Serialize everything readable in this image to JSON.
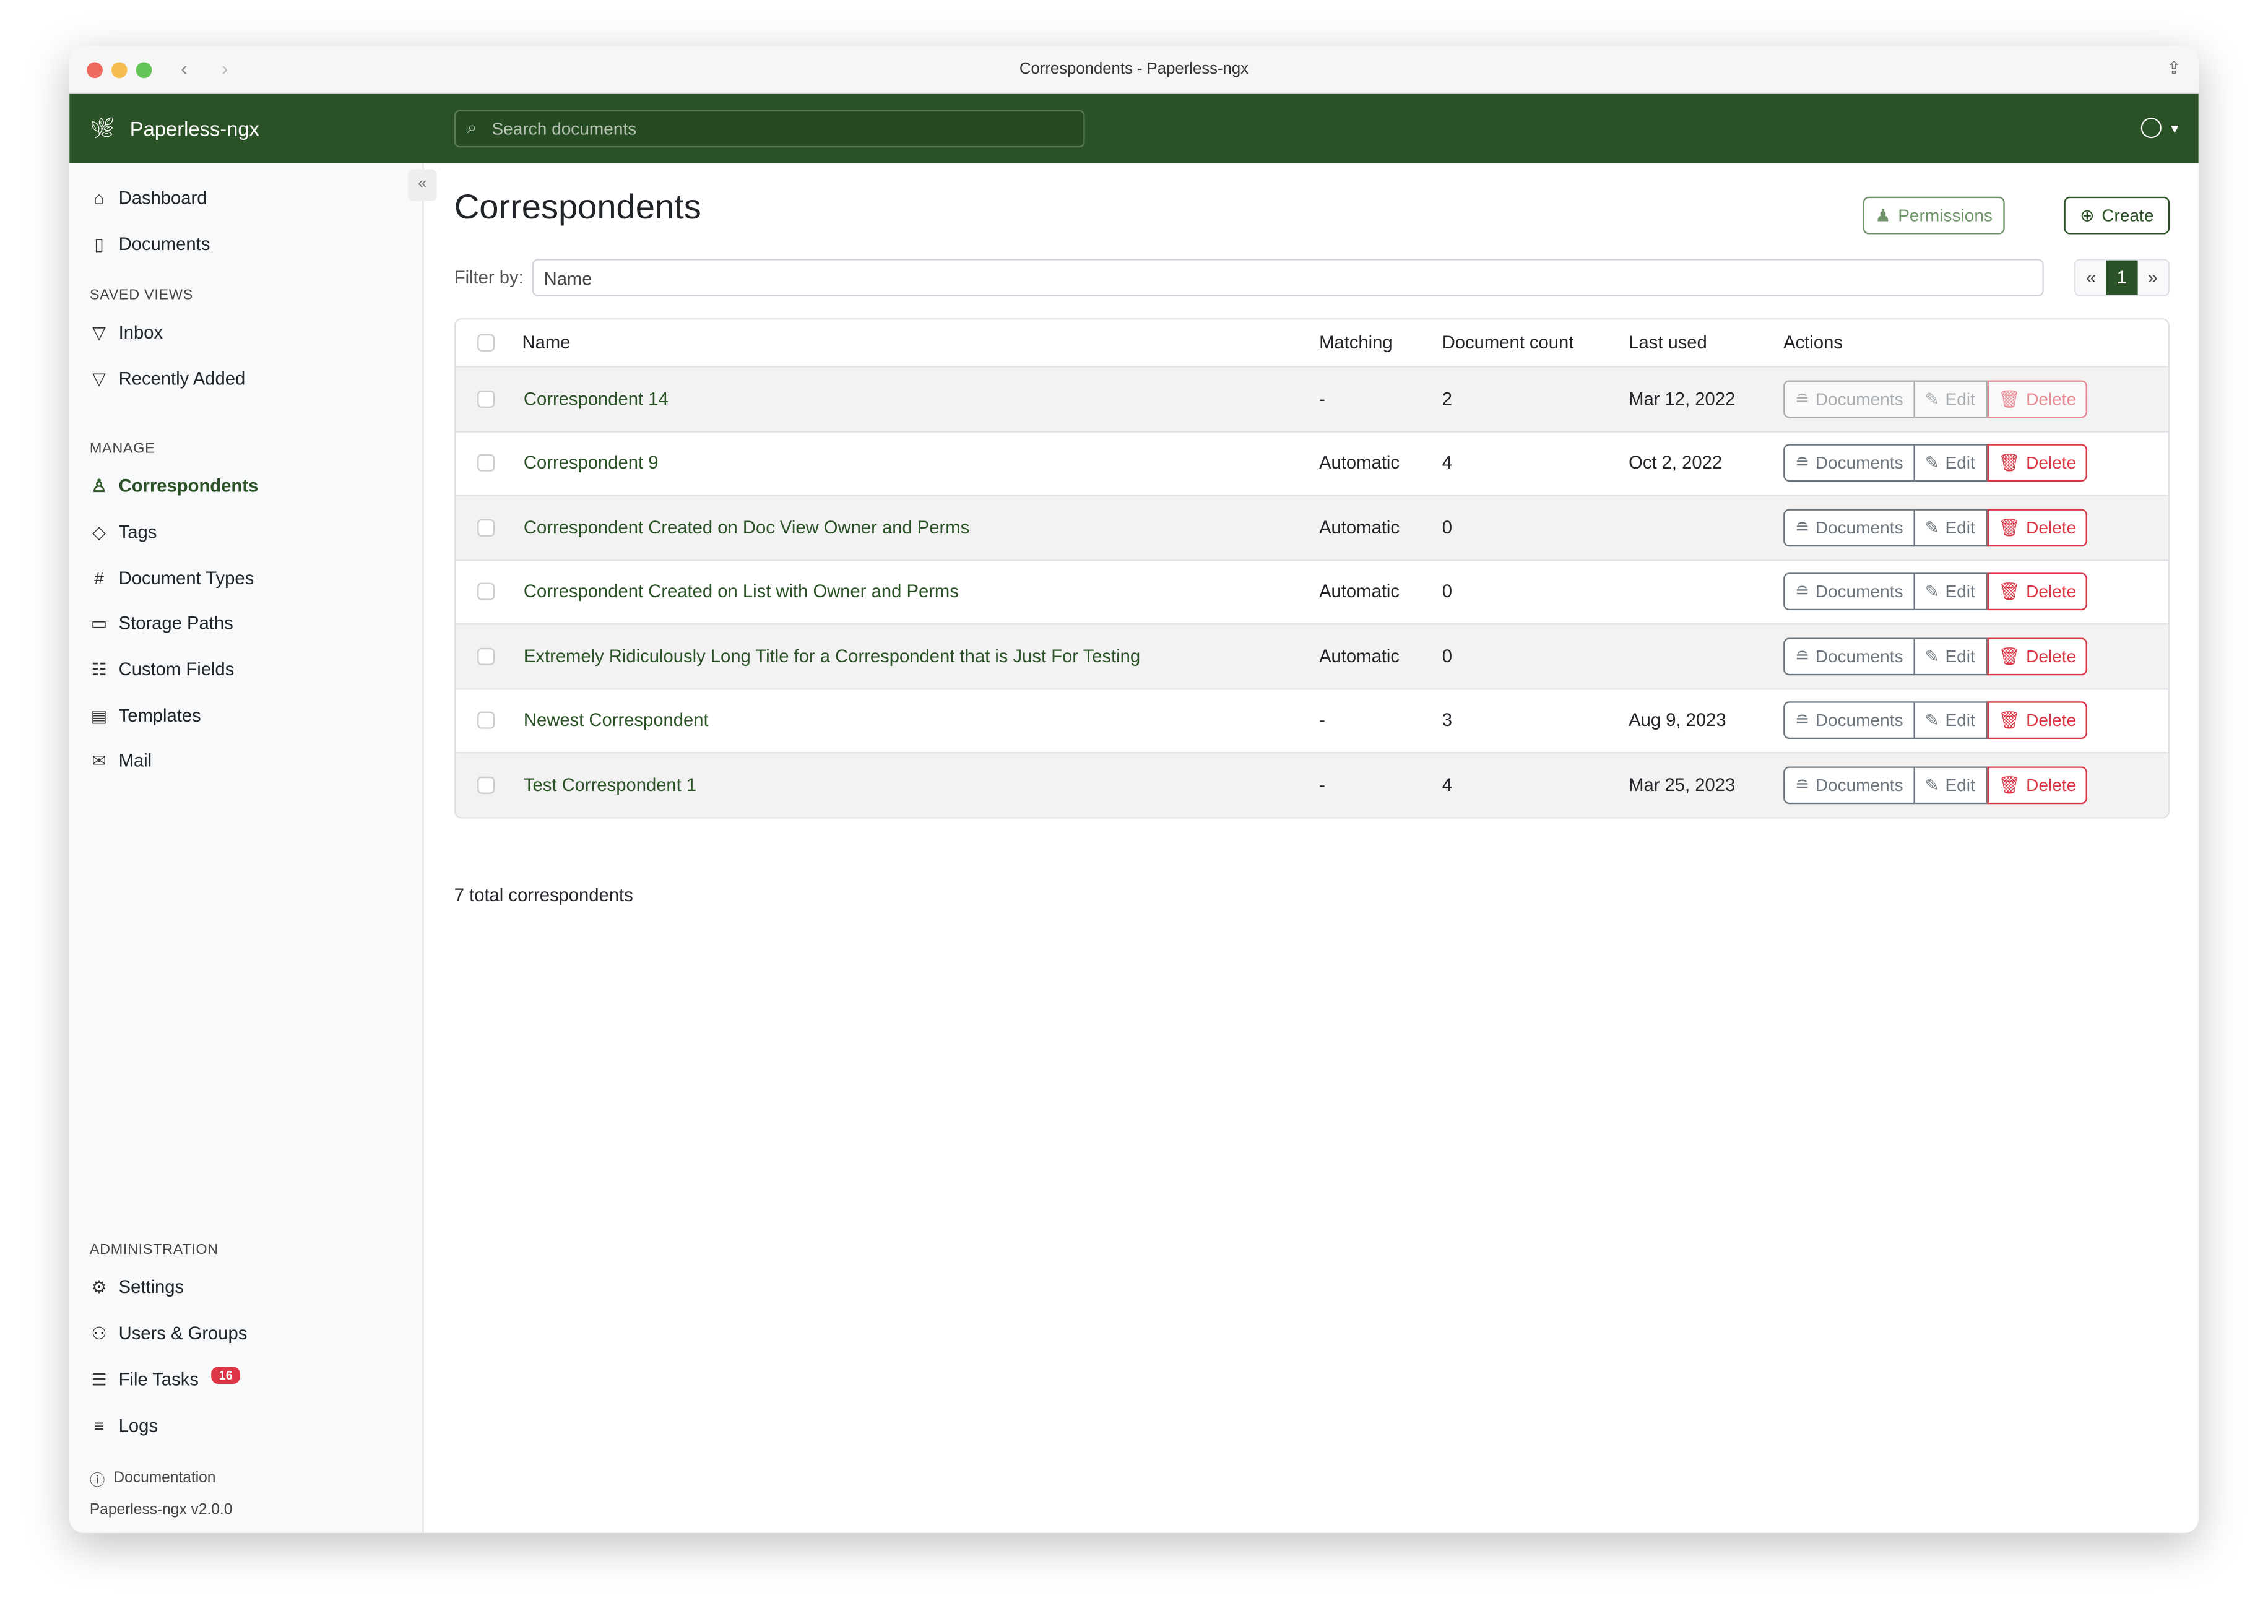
{
  "window": {
    "title": "Correspondents - Paperless-ngx"
  },
  "header": {
    "brand": "Paperless-ngx",
    "search_placeholder": "Search documents"
  },
  "sidebar": {
    "items": [
      {
        "label": "Dashboard",
        "icon": "house-icon"
      },
      {
        "label": "Documents",
        "icon": "files-icon"
      }
    ],
    "saved_views_heading": "SAVED VIEWS",
    "saved_views": [
      {
        "label": "Inbox",
        "icon": "funnel-icon"
      },
      {
        "label": "Recently Added",
        "icon": "funnel-icon"
      }
    ],
    "manage_heading": "MANAGE",
    "manage": [
      {
        "label": "Correspondents",
        "icon": "person-icon",
        "active": true
      },
      {
        "label": "Tags",
        "icon": "tags-icon"
      },
      {
        "label": "Document Types",
        "icon": "hash-icon"
      },
      {
        "label": "Storage Paths",
        "icon": "folder-icon"
      },
      {
        "label": "Custom Fields",
        "icon": "ui-radios-icon"
      },
      {
        "label": "Templates",
        "icon": "file-text-icon"
      },
      {
        "label": "Mail",
        "icon": "envelope-icon"
      }
    ],
    "admin_heading": "ADMINISTRATION",
    "admin": [
      {
        "label": "Settings",
        "icon": "gear-icon"
      },
      {
        "label": "Users & Groups",
        "icon": "people-icon"
      },
      {
        "label": "File Tasks",
        "icon": "list-task-icon",
        "badge": "16"
      },
      {
        "label": "Logs",
        "icon": "text-left-icon"
      }
    ],
    "documentation": "Documentation",
    "version": "Paperless-ngx v2.0.0"
  },
  "main": {
    "title": "Correspondents",
    "permissions_label": "Permissions",
    "create_label": "Create",
    "filter_label": "Filter by:",
    "filter_placeholder": "Name",
    "pagination": {
      "prev": "«",
      "current": "1",
      "next": "»"
    },
    "columns": [
      "Name",
      "Matching",
      "Document count",
      "Last used",
      "Actions"
    ],
    "action_labels": {
      "documents": "Documents",
      "edit": "Edit",
      "delete": "Delete"
    },
    "rows": [
      {
        "name": "Correspondent 14",
        "matching": "-",
        "count": "2",
        "last_used": "Mar 12, 2022",
        "disabled": true
      },
      {
        "name": "Correspondent 9",
        "matching": "Automatic",
        "count": "4",
        "last_used": "Oct 2, 2022"
      },
      {
        "name": "Correspondent Created on Doc View Owner and Perms",
        "matching": "Automatic",
        "count": "0",
        "last_used": ""
      },
      {
        "name": "Correspondent Created on List with Owner and Perms",
        "matching": "Automatic",
        "count": "0",
        "last_used": ""
      },
      {
        "name": "Extremely Ridiculously Long Title for a Correspondent that is Just For Testing",
        "matching": "Automatic",
        "count": "0",
        "last_used": ""
      },
      {
        "name": "Newest Correspondent",
        "matching": "-",
        "count": "3",
        "last_used": "Aug 9, 2023"
      },
      {
        "name": "Test Correspondent 1",
        "matching": "-",
        "count": "4",
        "last_used": "Mar 25, 2023"
      }
    ],
    "total": "7 total correspondents"
  },
  "colors": {
    "brand": "#2b5227",
    "danger": "#dc3545"
  }
}
